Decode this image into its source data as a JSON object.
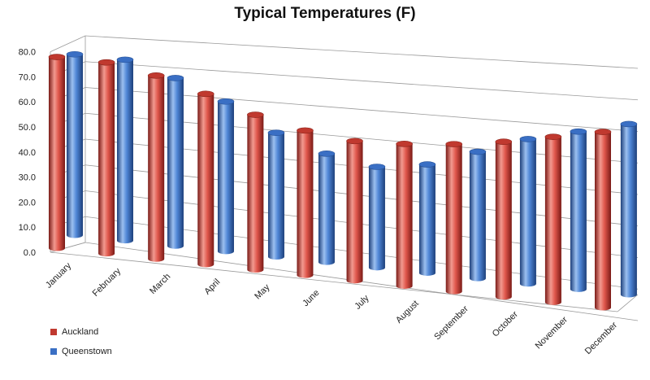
{
  "chart_data": {
    "type": "bar",
    "title": "Typical Temperatures (F)",
    "xlabel": "",
    "ylabel": "",
    "categories": [
      "January",
      "February",
      "March",
      "April",
      "May",
      "June",
      "July",
      "August",
      "September",
      "October",
      "November",
      "December"
    ],
    "series": [
      {
        "name": "Auckland",
        "values": [
          74,
          74,
          71,
          66,
          60,
          56,
          54,
          55,
          57,
          60,
          64,
          68
        ]
      },
      {
        "name": "Queenstown",
        "values": [
          70,
          70,
          65,
          58,
          48,
          42,
          39,
          42,
          49,
          56,
          61,
          66
        ]
      }
    ],
    "ylim": [
      0,
      80
    ],
    "yticks": [
      "0.0",
      "10.0",
      "20.0",
      "30.0",
      "40.0",
      "50.0",
      "60.0",
      "70.0",
      "80.0"
    ],
    "grid": true,
    "legend_position": "bottom-left",
    "colors": {
      "Auckland": "#c0392f",
      "Queenstown": "#3a6fc4"
    }
  }
}
